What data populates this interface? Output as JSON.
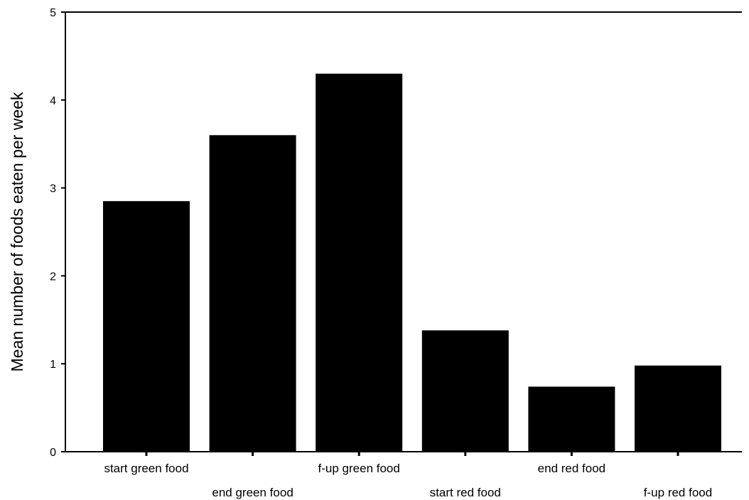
{
  "chart_data": {
    "type": "bar",
    "title": "",
    "xlabel": "",
    "ylabel": "Mean number of foods eaten per week",
    "ylim": [
      0,
      5
    ],
    "yticks": [
      0,
      1,
      2,
      3,
      4,
      5
    ],
    "grid": false,
    "legend": "none",
    "bar_color": "#000000",
    "categories": [
      "start green food",
      "end green food",
      "f-up green food",
      "start red food",
      "end red food",
      "f-up red food"
    ],
    "values": [
      2.85,
      3.6,
      4.3,
      1.38,
      0.74,
      0.98
    ]
  }
}
